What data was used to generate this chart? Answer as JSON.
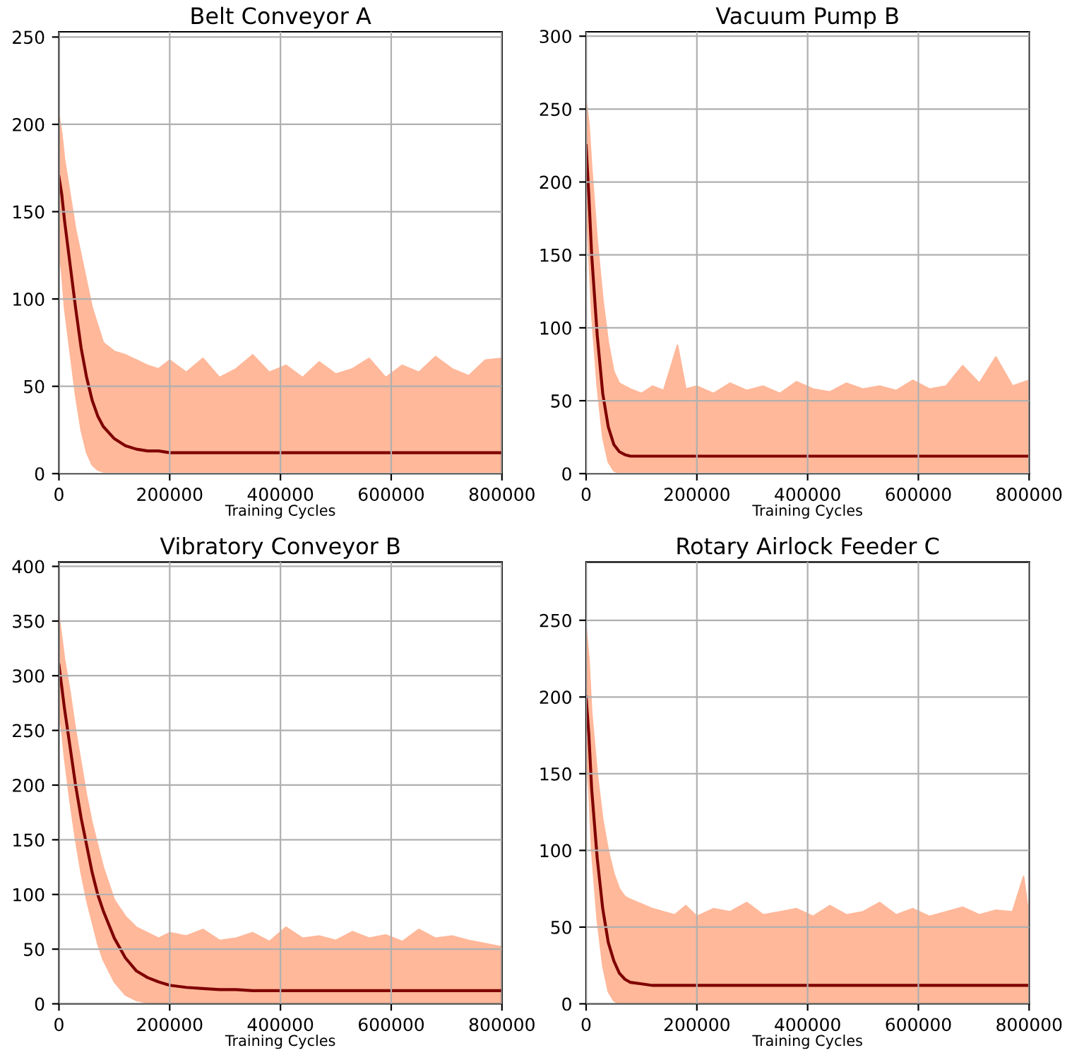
{
  "chart_data": [
    {
      "type": "line",
      "title": "Belt Conveyor A",
      "xlabel": "Training Cycles",
      "xlim": [
        0,
        800000
      ],
      "xticks": [
        0,
        200000,
        400000,
        600000,
        800000
      ],
      "ylim": [
        0,
        253
      ],
      "yticks": [
        0,
        50,
        100,
        150,
        200,
        250
      ],
      "grid": true,
      "x": [
        0,
        5000,
        10000,
        20000,
        30000,
        40000,
        50000,
        60000,
        70000,
        80000,
        100000,
        120000,
        140000,
        160000,
        180000,
        200000,
        230000,
        260000,
        290000,
        320000,
        350000,
        380000,
        410000,
        440000,
        470000,
        500000,
        530000,
        560000,
        590000,
        620000,
        650000,
        680000,
        710000,
        740000,
        770000,
        800000
      ],
      "series": [
        {
          "color": "#7f0000",
          "values": [
            170,
            160,
            145,
            120,
            95,
            72,
            55,
            42,
            33,
            27,
            20,
            16,
            14,
            13,
            13,
            12,
            12,
            12,
            12,
            12,
            12,
            12,
            12,
            12,
            12,
            12,
            12,
            12,
            12,
            12,
            12,
            12,
            12,
            12,
            12,
            12
          ],
          "upper": [
            205,
            195,
            180,
            160,
            140,
            125,
            110,
            95,
            85,
            75,
            70,
            68,
            65,
            62,
            60,
            65,
            58,
            66,
            55,
            60,
            68,
            58,
            62,
            55,
            64,
            57,
            60,
            66,
            55,
            62,
            58,
            67,
            60,
            56,
            65,
            66
          ],
          "lower": [
            130,
            115,
            95,
            70,
            45,
            25,
            12,
            5,
            2,
            1,
            0,
            0,
            0,
            0,
            0,
            0,
            0,
            0,
            0,
            0,
            0,
            0,
            0,
            0,
            0,
            0,
            0,
            0,
            0,
            0,
            0,
            0,
            0,
            0,
            0,
            0
          ]
        }
      ]
    },
    {
      "type": "line",
      "title": "Vacuum Pump B",
      "xlabel": "Training Cycles",
      "xlim": [
        0,
        800000
      ],
      "xticks": [
        0,
        200000,
        400000,
        600000,
        800000
      ],
      "ylim": [
        0,
        303
      ],
      "yticks": [
        0,
        50,
        100,
        150,
        200,
        250,
        300
      ],
      "grid": true,
      "x": [
        0,
        5000,
        10000,
        20000,
        30000,
        40000,
        50000,
        60000,
        70000,
        80000,
        100000,
        120000,
        140000,
        165000,
        180000,
        200000,
        230000,
        260000,
        290000,
        320000,
        350000,
        380000,
        410000,
        440000,
        470000,
        500000,
        530000,
        560000,
        590000,
        620000,
        650000,
        680000,
        710000,
        740000,
        770000,
        800000
      ],
      "series": [
        {
          "color": "#7f0000",
          "values": [
            225,
            190,
            150,
            95,
            55,
            32,
            20,
            15,
            13,
            12,
            12,
            12,
            12,
            12,
            12,
            12,
            12,
            12,
            12,
            12,
            12,
            12,
            12,
            12,
            12,
            12,
            12,
            12,
            12,
            12,
            12,
            12,
            12,
            12,
            12,
            12
          ],
          "upper": [
            255,
            240,
            210,
            160,
            120,
            90,
            70,
            62,
            60,
            58,
            55,
            60,
            57,
            88,
            58,
            60,
            55,
            62,
            57,
            60,
            55,
            63,
            58,
            56,
            62,
            58,
            60,
            57,
            64,
            58,
            60,
            74,
            62,
            80,
            60,
            64
          ],
          "lower": [
            190,
            150,
            110,
            60,
            25,
            8,
            2,
            0,
            0,
            0,
            0,
            0,
            0,
            0,
            0,
            0,
            0,
            0,
            0,
            0,
            0,
            0,
            0,
            0,
            0,
            0,
            0,
            0,
            0,
            0,
            0,
            0,
            0,
            0,
            0,
            0
          ]
        }
      ]
    },
    {
      "type": "line",
      "title": "Vibratory Conveyor B",
      "xlabel": "Training Cycles",
      "xlim": [
        0,
        800000
      ],
      "xticks": [
        0,
        200000,
        400000,
        600000,
        800000
      ],
      "ylim": [
        0,
        404
      ],
      "yticks": [
        0,
        50,
        100,
        150,
        200,
        250,
        300,
        350,
        400
      ],
      "grid": true,
      "x": [
        0,
        5000,
        10000,
        20000,
        30000,
        40000,
        50000,
        60000,
        70000,
        80000,
        100000,
        120000,
        140000,
        160000,
        180000,
        200000,
        230000,
        260000,
        290000,
        320000,
        350000,
        380000,
        410000,
        440000,
        470000,
        500000,
        530000,
        560000,
        590000,
        620000,
        650000,
        680000,
        710000,
        740000,
        770000,
        800000
      ],
      "series": [
        {
          "color": "#7f0000",
          "values": [
            310,
            290,
            270,
            235,
            200,
            170,
            145,
            120,
            100,
            85,
            60,
            42,
            30,
            24,
            20,
            17,
            15,
            14,
            13,
            13,
            12,
            12,
            12,
            12,
            12,
            12,
            12,
            12,
            12,
            12,
            12,
            12,
            12,
            12,
            12,
            12
          ],
          "upper": [
            355,
            335,
            315,
            285,
            250,
            220,
            190,
            165,
            145,
            125,
            95,
            80,
            70,
            65,
            60,
            65,
            62,
            68,
            58,
            60,
            65,
            57,
            70,
            60,
            62,
            58,
            66,
            60,
            63,
            57,
            68,
            60,
            62,
            58,
            55,
            52
          ],
          "lower": [
            270,
            250,
            225,
            185,
            150,
            120,
            95,
            75,
            55,
            40,
            20,
            8,
            3,
            1,
            0,
            0,
            0,
            0,
            0,
            0,
            0,
            0,
            0,
            0,
            0,
            0,
            0,
            0,
            0,
            0,
            0,
            0,
            0,
            0,
            0,
            0
          ]
        }
      ]
    },
    {
      "type": "line",
      "title": "Rotary Airlock Feeder C",
      "xlabel": "Training Cycles",
      "xlim": [
        0,
        800000
      ],
      "xticks": [
        0,
        200000,
        400000,
        600000,
        800000
      ],
      "ylim": [
        0,
        288
      ],
      "yticks": [
        0,
        50,
        100,
        150,
        200,
        250
      ],
      "grid": true,
      "x": [
        0,
        5000,
        10000,
        20000,
        30000,
        40000,
        50000,
        60000,
        70000,
        80000,
        100000,
        120000,
        140000,
        160000,
        180000,
        200000,
        230000,
        260000,
        290000,
        320000,
        350000,
        380000,
        410000,
        440000,
        470000,
        500000,
        530000,
        560000,
        590000,
        620000,
        650000,
        680000,
        710000,
        740000,
        770000,
        790000,
        800000
      ],
      "series": [
        {
          "color": "#7f0000",
          "values": [
            200,
            175,
            140,
            95,
            62,
            40,
            28,
            20,
            16,
            14,
            13,
            12,
            12,
            12,
            12,
            12,
            12,
            12,
            12,
            12,
            12,
            12,
            12,
            12,
            12,
            12,
            12,
            12,
            12,
            12,
            12,
            12,
            12,
            12,
            12,
            12,
            12
          ],
          "upper": [
            245,
            225,
            190,
            150,
            120,
            100,
            85,
            75,
            70,
            68,
            65,
            62,
            60,
            58,
            64,
            57,
            62,
            60,
            66,
            58,
            60,
            62,
            57,
            64,
            58,
            60,
            66,
            58,
            62,
            57,
            60,
            63,
            58,
            61,
            60,
            83,
            56
          ],
          "lower": [
            165,
            140,
            100,
            55,
            25,
            8,
            2,
            0,
            0,
            0,
            0,
            0,
            0,
            0,
            0,
            0,
            0,
            0,
            0,
            0,
            0,
            0,
            0,
            0,
            0,
            0,
            0,
            0,
            0,
            0,
            0,
            0,
            0,
            0,
            0,
            0,
            0
          ]
        }
      ]
    }
  ]
}
